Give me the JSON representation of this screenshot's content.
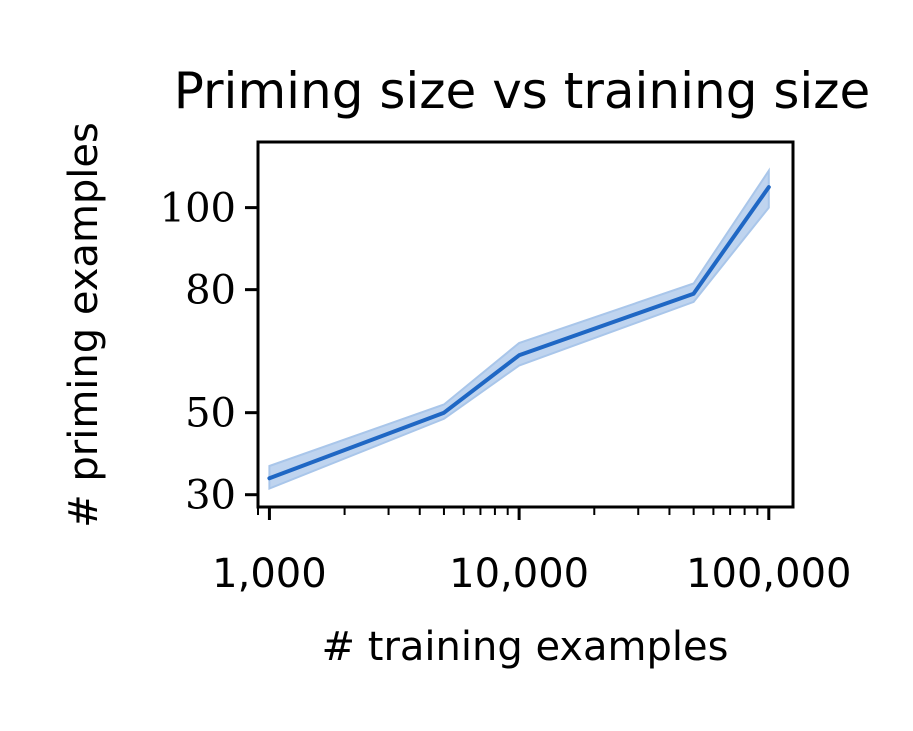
{
  "chart_data": {
    "type": "line",
    "title": "Priming size vs training size",
    "xlabel": "# training examples",
    "ylabel": "# priming examples",
    "x_scale": "log",
    "y_scale": "linear",
    "xlim": [
      900,
      125000
    ],
    "ylim": [
      27,
      116
    ],
    "x_ticks": [
      {
        "value": 1000,
        "label": "1,000"
      },
      {
        "value": 10000,
        "label": "10,000"
      },
      {
        "value": 100000,
        "label": "100,000"
      }
    ],
    "y_ticks": [
      {
        "value": 30,
        "label": "30"
      },
      {
        "value": 50,
        "label": "50"
      },
      {
        "value": 80,
        "label": "80"
      },
      {
        "value": 100,
        "label": "100"
      }
    ],
    "grid": false,
    "series": [
      {
        "color": "#1f67c4",
        "band_color": "#a9c6ea",
        "points": [
          {
            "x": 1000,
            "y": 34,
            "lo": 31.5,
            "hi": 37
          },
          {
            "x": 5000,
            "y": 50,
            "lo": 48.5,
            "hi": 52
          },
          {
            "x": 10000,
            "y": 64,
            "lo": 61.5,
            "hi": 67
          },
          {
            "x": 50000,
            "y": 79,
            "lo": 77,
            "hi": 81.5
          },
          {
            "x": 100000,
            "y": 105,
            "lo": 100,
            "hi": 109
          }
        ]
      }
    ]
  }
}
